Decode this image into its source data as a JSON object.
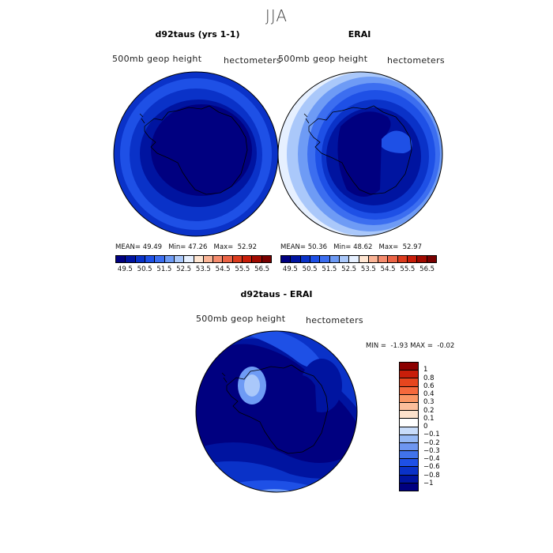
{
  "season": "JJA",
  "panels": [
    {
      "title": "d92taus (yrs 1-1)",
      "variable": "500mb geop height",
      "units": "hectometers",
      "mean_label": "MEAN=",
      "mean": "49.49",
      "min_label": "Min=",
      "min": "47.26",
      "max_label": "Max=",
      "max": "52.92"
    },
    {
      "title": "ERAI",
      "variable": "500mb geop height",
      "units": "hectometers",
      "mean_label": "MEAN=",
      "mean": "50.36",
      "min_label": "Min=",
      "min": "48.62",
      "max_label": "Max=",
      "max": "52.97"
    }
  ],
  "abs_colorbar": {
    "colors": [
      "#000080",
      "#0014a0",
      "#0a32c8",
      "#1e50e6",
      "#3c6ef0",
      "#6e9bf5",
      "#aac8fa",
      "#e6f0ff",
      "#ffe6d2",
      "#fab496",
      "#f58c6e",
      "#eb6446",
      "#dc3c1e",
      "#c81e0a",
      "#a00a00",
      "#780000"
    ],
    "ticks": [
      "49.5",
      "50.5",
      "51.5",
      "52.5",
      "53.5",
      "54.5",
      "55.5",
      "56.5"
    ]
  },
  "diff_panel": {
    "title": "d92taus - ERAI",
    "variable": "500mb geop height",
    "units": "hectometers",
    "min_label": "MIN =",
    "min": "-1.93",
    "max_label": "MAX =",
    "max": "-0.02"
  },
  "diff_colorbar": {
    "colors": [
      "#8c0000",
      "#c81e0a",
      "#e6461e",
      "#f5693c",
      "#fa9664",
      "#fcbe9b",
      "#fde2cc",
      "#ffffff",
      "#c8dcfa",
      "#96b9f5",
      "#6e96f0",
      "#4173eb",
      "#1e50e6",
      "#0a32c8",
      "#0014a0",
      "#000080"
    ],
    "ticks": [
      "1",
      "0.8",
      "0.6",
      "0.4",
      "0.3",
      "0.2",
      "0.1",
      "0",
      "−0.1",
      "−0.2",
      "−0.3",
      "−0.4",
      "−0.6",
      "−0.8",
      "−1"
    ]
  },
  "map_colors": {
    "deep": "#000080",
    "dark": "#0014a0",
    "mid1": "#0a32c8",
    "mid2": "#1e50e6",
    "mid3": "#3c6ef0",
    "light1": "#6e9bf5",
    "light2": "#aac8fa",
    "pale": "#e6f0ff",
    "coast": "#000000"
  }
}
